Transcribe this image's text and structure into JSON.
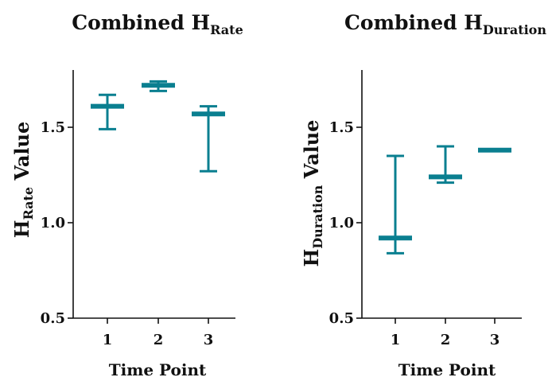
{
  "colors": {
    "series": "#0a7f90",
    "axis": "#111111"
  },
  "chart_data": [
    {
      "type": "errorbar",
      "title": {
        "main": "Combined H",
        "sub": "Rate"
      },
      "ylabel": {
        "main": "H",
        "sub": "Rate",
        "rest": " Value"
      },
      "xlabel": "Time Point",
      "categories": [
        "1",
        "2",
        "3"
      ],
      "values": [
        1.61,
        1.72,
        1.57
      ],
      "lower": [
        1.49,
        1.69,
        1.27
      ],
      "upper": [
        1.67,
        1.74,
        1.61
      ],
      "ylim": [
        0.5,
        1.8
      ],
      "yticks": [
        0.5,
        1.0,
        1.5
      ],
      "ytick_labels": [
        "0.5",
        "1.0",
        "1.5"
      ]
    },
    {
      "type": "errorbar",
      "title": {
        "main": "Combined H",
        "sub": "Duration"
      },
      "ylabel": {
        "main": "H",
        "sub": "Duration",
        "rest": " Value"
      },
      "xlabel": "Time Point",
      "categories": [
        "1",
        "2",
        "3"
      ],
      "values": [
        0.92,
        1.24,
        1.38
      ],
      "lower": [
        0.84,
        1.21,
        1.38
      ],
      "upper": [
        1.35,
        1.4,
        1.38
      ],
      "ylim": [
        0.5,
        1.8
      ],
      "yticks": [
        0.5,
        1.0,
        1.5
      ],
      "ytick_labels": [
        "0.5",
        "1.0",
        "1.5"
      ]
    }
  ]
}
